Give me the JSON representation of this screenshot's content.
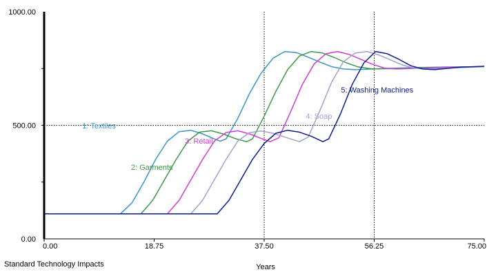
{
  "chart_data": {
    "type": "line",
    "title": "",
    "caption": "Standard Technology Impacts",
    "xlabel": "Years",
    "ylabel": "",
    "xlim": [
      0,
      75
    ],
    "ylim": [
      0,
      1000
    ],
    "x_ticks": [
      "0.00",
      "18.75",
      "37.50",
      "56.25",
      "75.00"
    ],
    "y_ticks": [
      "0.00",
      "500.00",
      "1000.00"
    ],
    "reference_lines": {
      "x": [
        37.5,
        56.25
      ],
      "y": [
        500
      ]
    },
    "grid": false,
    "series": [
      {
        "name": "1: Textiles",
        "color": "#3a95c4",
        "label_at": [
          6.5,
          186
        ],
        "points": [
          [
            0,
            110
          ],
          [
            13,
            110
          ],
          [
            15,
            160
          ],
          [
            17,
            250
          ],
          [
            19,
            350
          ],
          [
            21,
            430
          ],
          [
            23,
            472
          ],
          [
            25,
            478
          ],
          [
            27,
            462
          ],
          [
            29,
            440
          ],
          [
            30,
            430
          ],
          [
            31,
            440
          ],
          [
            33,
            530
          ],
          [
            35,
            640
          ],
          [
            37,
            730
          ],
          [
            39,
            795
          ],
          [
            41,
            825
          ],
          [
            43,
            820
          ],
          [
            45,
            800
          ],
          [
            47,
            778
          ],
          [
            49,
            758
          ],
          [
            51,
            748
          ],
          [
            53,
            745
          ],
          [
            56,
            748
          ],
          [
            60,
            752
          ],
          [
            65,
            755
          ],
          [
            70,
            757
          ],
          [
            75,
            758
          ]
        ]
      },
      {
        "name": "2: Garments",
        "color": "#3a9a48",
        "label_at": [
          14.8,
          246
        ],
        "points": [
          [
            0,
            110
          ],
          [
            16.5,
            110
          ],
          [
            18.5,
            170
          ],
          [
            20.5,
            260
          ],
          [
            22.5,
            350
          ],
          [
            24.5,
            430
          ],
          [
            26.5,
            470
          ],
          [
            28.5,
            476
          ],
          [
            30.5,
            462
          ],
          [
            32.5,
            442
          ],
          [
            34.5,
            428
          ],
          [
            35.5,
            440
          ],
          [
            37.5,
            540
          ],
          [
            39.5,
            650
          ],
          [
            41.5,
            745
          ],
          [
            43.5,
            805
          ],
          [
            45.5,
            825
          ],
          [
            47.5,
            818
          ],
          [
            49.5,
            798
          ],
          [
            51.5,
            775
          ],
          [
            53.5,
            757
          ],
          [
            56,
            748
          ],
          [
            60,
            750
          ],
          [
            65,
            754
          ],
          [
            70,
            756
          ],
          [
            75,
            758
          ]
        ]
      },
      {
        "name": "3: Retail",
        "color": "#d43ad4",
        "label_at": [
          24,
          208
        ],
        "points": [
          [
            0,
            110
          ],
          [
            21,
            110
          ],
          [
            23,
            170
          ],
          [
            25,
            260
          ],
          [
            27,
            350
          ],
          [
            29,
            430
          ],
          [
            31,
            468
          ],
          [
            33,
            476
          ],
          [
            35,
            462
          ],
          [
            37,
            442
          ],
          [
            38.5,
            428
          ],
          [
            40,
            445
          ],
          [
            42,
            560
          ],
          [
            44,
            680
          ],
          [
            46,
            770
          ],
          [
            48,
            815
          ],
          [
            50,
            825
          ],
          [
            52,
            812
          ],
          [
            54,
            790
          ],
          [
            56,
            768
          ],
          [
            58,
            752
          ],
          [
            60,
            748
          ],
          [
            65,
            752
          ],
          [
            70,
            756
          ],
          [
            75,
            758
          ]
        ]
      },
      {
        "name": "4: Soap",
        "color": "#a0a0d0",
        "label_at": [
          44.6,
          172
        ],
        "points": [
          [
            0,
            110
          ],
          [
            25,
            110
          ],
          [
            27,
            170
          ],
          [
            29,
            260
          ],
          [
            31,
            350
          ],
          [
            33,
            430
          ],
          [
            35,
            468
          ],
          [
            37,
            475
          ],
          [
            39,
            465
          ],
          [
            41,
            448
          ],
          [
            43.5,
            428
          ],
          [
            45,
            448
          ],
          [
            47,
            565
          ],
          [
            49,
            690
          ],
          [
            51,
            780
          ],
          [
            53,
            818
          ],
          [
            55,
            825
          ],
          [
            57,
            810
          ],
          [
            59,
            788
          ],
          [
            61,
            766
          ],
          [
            63,
            752
          ],
          [
            65,
            748
          ],
          [
            70,
            753
          ],
          [
            75,
            758
          ]
        ]
      },
      {
        "name": "5: Washing Machines",
        "color": "#0a1c8c",
        "label_at": [
          50.6,
          134
        ],
        "points": [
          [
            0,
            110
          ],
          [
            29.5,
            110
          ],
          [
            31.5,
            170
          ],
          [
            33.5,
            260
          ],
          [
            35.5,
            350
          ],
          [
            37.5,
            420
          ],
          [
            39.5,
            465
          ],
          [
            41.5,
            478
          ],
          [
            43.5,
            470
          ],
          [
            45.5,
            452
          ],
          [
            47.5,
            428
          ],
          [
            48.5,
            440
          ],
          [
            50.5,
            550
          ],
          [
            52.5,
            680
          ],
          [
            54.5,
            775
          ],
          [
            56.5,
            825
          ],
          [
            58.5,
            815
          ],
          [
            60.5,
            790
          ],
          [
            62.5,
            762
          ],
          [
            64.5,
            748
          ],
          [
            66.5,
            745
          ],
          [
            68.5,
            750
          ],
          [
            71,
            756
          ],
          [
            75,
            760
          ]
        ]
      }
    ]
  }
}
